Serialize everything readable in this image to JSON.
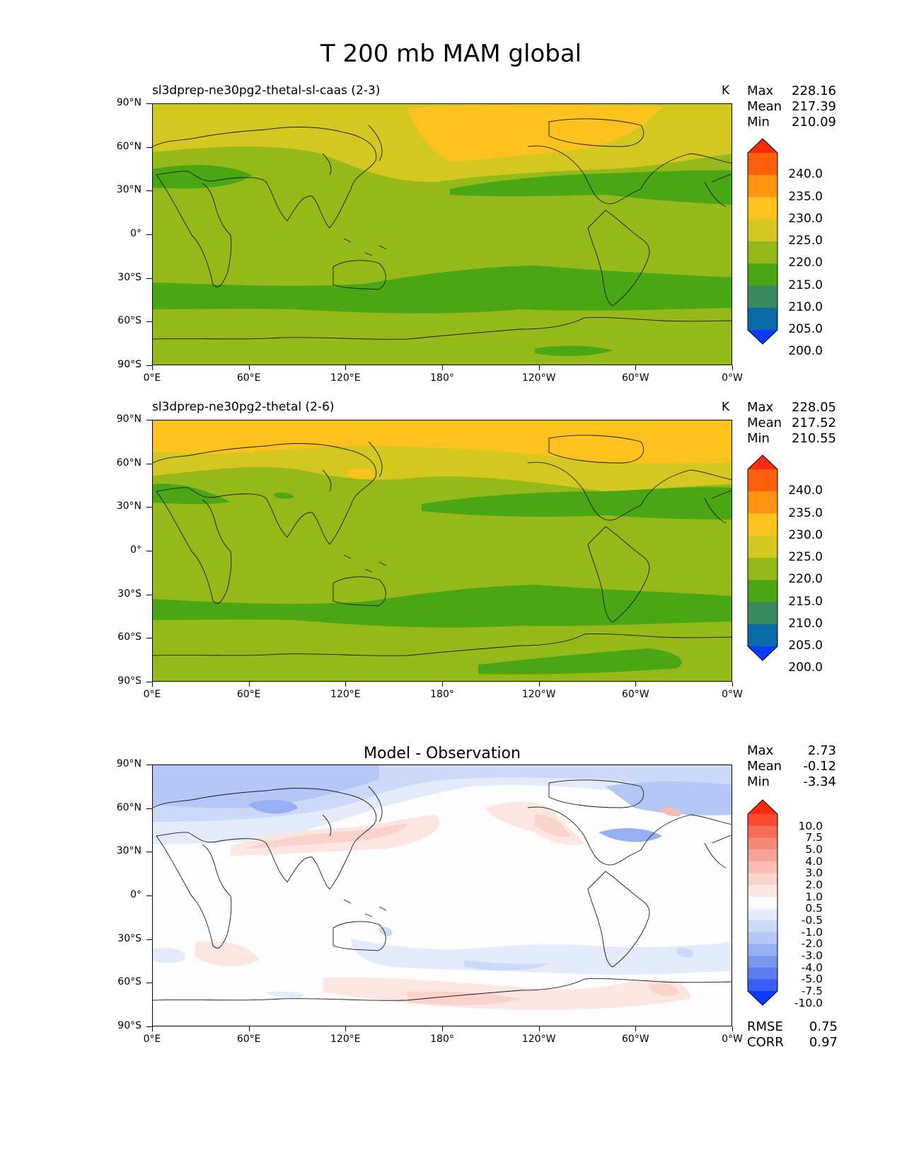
{
  "figure_title": "T 200 mb MAM global",
  "x_ticks": [
    "0°E",
    "60°E",
    "120°E",
    "180°",
    "120°W",
    "60°W",
    "0°W"
  ],
  "y_ticks": [
    "90°N",
    "60°N",
    "30°N",
    "0°",
    "30°S",
    "60°S",
    "90°S"
  ],
  "panels": [
    {
      "title": "sl3dprep-ne30pg2-thetal-sl-caas (2-3)",
      "units": "K",
      "stats": {
        "max_label": "Max",
        "max": "228.16",
        "mean_label": "Mean",
        "mean": "217.39",
        "min_label": "Min",
        "min": "210.09"
      },
      "colorbar": {
        "labels": [
          "240.0",
          "235.0",
          "230.0",
          "225.0",
          "220.0",
          "215.0",
          "210.0",
          "205.0",
          "200.0"
        ],
        "colors": [
          "#ff2a0a",
          "#ff6010",
          "#ff9512",
          "#fdc21e",
          "#d4c722",
          "#94b918",
          "#4aa615",
          "#3a8a60",
          "#0a6aa8",
          "#0a3cff"
        ]
      }
    },
    {
      "title": "sl3dprep-ne30pg2-thetal (2-6)",
      "units": "K",
      "stats": {
        "max_label": "Max",
        "max": "228.05",
        "mean_label": "Mean",
        "mean": "217.52",
        "min_label": "Min",
        "min": "210.55"
      },
      "colorbar": {
        "labels": [
          "240.0",
          "235.0",
          "230.0",
          "225.0",
          "220.0",
          "215.0",
          "210.0",
          "205.0",
          "200.0"
        ],
        "colors": [
          "#ff2a0a",
          "#ff6010",
          "#ff9512",
          "#fdc21e",
          "#d4c722",
          "#94b918",
          "#4aa615",
          "#3a8a60",
          "#0a6aa8",
          "#0a3cff"
        ]
      }
    },
    {
      "title": "Model - Observation",
      "units": "",
      "stats": {
        "max_label": "Max",
        "max": "2.73",
        "mean_label": "Mean",
        "mean": "-0.12",
        "min_label": "Min",
        "min": "-3.34"
      },
      "colorbar": {
        "labels": [
          "10.0",
          "7.5",
          "5.0",
          "4.0",
          "3.0",
          "2.0",
          "1.0",
          "0.5",
          "-0.5",
          "-1.0",
          "-2.0",
          "-3.0",
          "-4.0",
          "-5.0",
          "-7.5",
          "-10.0"
        ],
        "colors": [
          "#ff2a0a",
          "#fb4a30",
          "#f76a55",
          "#f58a78",
          "#f5a398",
          "#f7bcb3",
          "#f9d3cc",
          "#fbe6e2",
          "#ffffff",
          "#e4ebfb",
          "#cdd9f8",
          "#b4c7f6",
          "#97b0f3",
          "#7b98f0",
          "#5b7df0",
          "#3a5ef5",
          "#0a3cff"
        ]
      },
      "rmse_label": "RMSE",
      "rmse": "0.75",
      "corr_label": "CORR",
      "corr": "0.97"
    }
  ]
}
